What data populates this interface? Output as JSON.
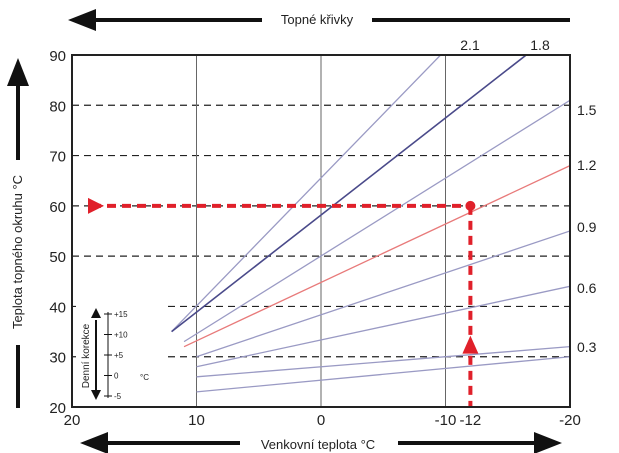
{
  "chart_data": {
    "type": "line",
    "title": "Topné křivky",
    "xlabel": "Venkovní teplota °C",
    "ylabel": "Teplota topného okruhu °C",
    "xlim": [
      20,
      -20
    ],
    "ylim": [
      20,
      90
    ],
    "x_ticks": [
      20,
      10,
      0,
      -10,
      -12,
      -20
    ],
    "x_tick_labels": [
      "20",
      "10",
      "0",
      "-10",
      "-12",
      "-20"
    ],
    "y_ticks": [
      20,
      30,
      40,
      50,
      60,
      70,
      80,
      90
    ],
    "y_tick_labels": [
      "20",
      "30",
      "40",
      "50",
      "60",
      "70",
      "80",
      "90"
    ],
    "grid": "dashed horizontal, solid vertical",
    "colors": {
      "curve": "#9a9ac4",
      "curve_dark": "#4a4a8a",
      "curve_highlight": "#e87a7a",
      "marker": "#e0202a",
      "frame": "#222222"
    },
    "series": [
      {
        "name": "2.1",
        "x": [
          12,
          -10
        ],
        "y": [
          35,
          91
        ]
      },
      {
        "name": "1.8",
        "x": [
          12,
          -17
        ],
        "y": [
          35,
          91
        ]
      },
      {
        "name": "1.5",
        "x": [
          11,
          -20
        ],
        "y": [
          33,
          81
        ]
      },
      {
        "name": "1.2",
        "x": [
          11,
          -20
        ],
        "y": [
          32,
          68
        ]
      },
      {
        "name": "0.9",
        "x": [
          10,
          -20
        ],
        "y": [
          30,
          55
        ]
      },
      {
        "name": "0.6",
        "x": [
          10,
          -20
        ],
        "y": [
          28,
          44
        ]
      },
      {
        "name": "0.3",
        "x": [
          10,
          -20
        ],
        "y": [
          26,
          32
        ]
      },
      {
        "x": [
          10,
          -20
        ],
        "y": [
          23,
          30
        ]
      }
    ],
    "highlight_series": "1.2",
    "dark_series": "1.8",
    "annotation": {
      "x": -12,
      "y": 60
    },
    "daily_correction": {
      "label": "Denní korekce",
      "ticks": [
        "+15",
        "+10",
        "+5",
        "0",
        "-5"
      ],
      "unit": "°C"
    }
  }
}
